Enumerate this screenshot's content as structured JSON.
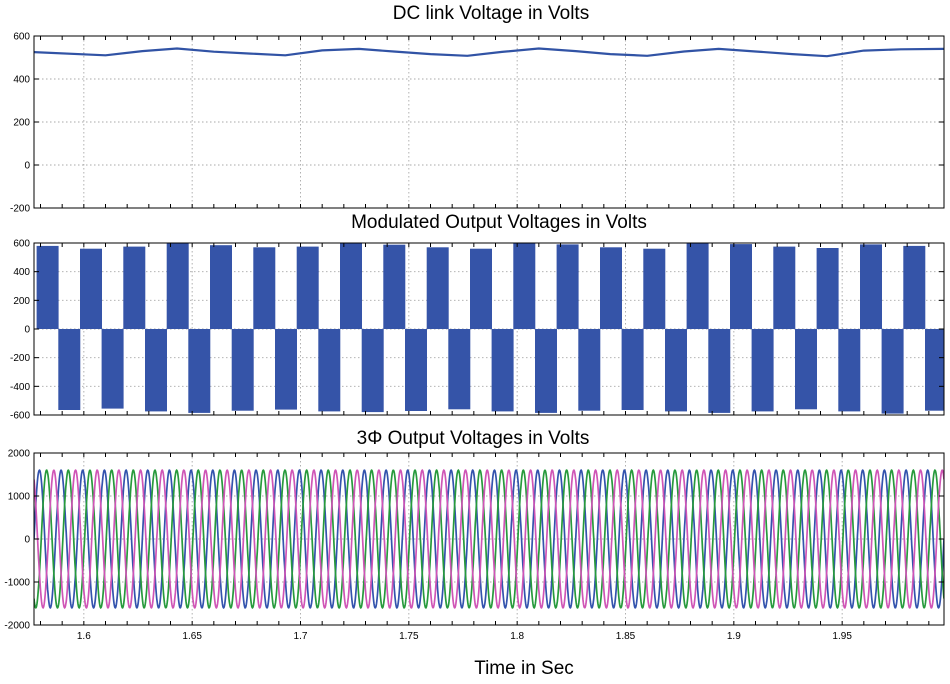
{
  "figure": {
    "xlabel": "Time in Sec"
  },
  "chart_data": [
    {
      "type": "line",
      "title": "DC link Voltage in Volts",
      "xlabel": "",
      "ylabel": "",
      "xlim": [
        1.577,
        1.997
      ],
      "ylim": [
        -200,
        600
      ],
      "yticks": [
        -200,
        0,
        200,
        400,
        600
      ],
      "grid": true,
      "series": [
        {
          "color": "#3153a5",
          "x": [
            1.577,
            1.61,
            1.627,
            1.643,
            1.66,
            1.677,
            1.693,
            1.71,
            1.727,
            1.743,
            1.76,
            1.777,
            1.793,
            1.81,
            1.827,
            1.843,
            1.86,
            1.877,
            1.893,
            1.91,
            1.927,
            1.943,
            1.96,
            1.977,
            1.997
          ],
          "y": [
            525,
            510,
            530,
            542,
            527,
            518,
            510,
            533,
            540,
            528,
            516,
            508,
            526,
            542,
            530,
            516,
            508,
            528,
            540,
            528,
            516,
            506,
            532,
            538,
            540
          ]
        }
      ]
    },
    {
      "type": "area",
      "title": "Modulated  Output Voltages in Volts",
      "xlabel": "",
      "ylabel": "",
      "xlim": [
        1.577,
        1.997
      ],
      "ylim": [
        -600,
        600
      ],
      "yticks": [
        -600,
        -400,
        -200,
        0,
        200,
        400,
        600
      ],
      "grid": true,
      "series": [
        {
          "color": "#3554a8",
          "x": [
            1.5833,
            1.6033,
            1.6233,
            1.6433,
            1.6633,
            1.6833,
            1.7033,
            1.7233,
            1.7433,
            1.7633,
            1.7833,
            1.8033,
            1.8233,
            1.8433,
            1.8633,
            1.8833,
            1.9033,
            1.9233,
            1.9433,
            1.9633,
            1.9833
          ],
          "values": [
            580,
            560,
            575,
            600,
            585,
            570,
            575,
            600,
            588,
            570,
            560,
            598,
            590,
            570,
            560,
            597,
            592,
            575,
            565,
            590,
            580
          ]
        },
        {
          "color": "#3554a8",
          "x": [
            1.5933,
            1.6133,
            1.6333,
            1.6533,
            1.6733,
            1.6933,
            1.7133,
            1.7333,
            1.7533,
            1.7733,
            1.7933,
            1.8133,
            1.8333,
            1.8533,
            1.8733,
            1.8933,
            1.9133,
            1.9333,
            1.9533,
            1.9733,
            1.9933
          ],
          "values": [
            -565,
            -555,
            -575,
            -585,
            -570,
            -562,
            -575,
            -580,
            -572,
            -560,
            -575,
            -585,
            -570,
            -565,
            -575,
            -585,
            -575,
            -560,
            -575,
            -590,
            -570
          ]
        }
      ]
    },
    {
      "type": "line",
      "title": "3Φ  Output Voltages in Volts",
      "xlabel": "Time in Sec",
      "ylabel": "",
      "xlim": [
        1.577,
        1.997
      ],
      "ylim": [
        -2000,
        2000
      ],
      "yticks": [
        -2000,
        -1000,
        0,
        1000,
        2000
      ],
      "xticks": [
        1.6,
        1.65,
        1.7,
        1.75,
        1.8,
        1.85,
        1.9,
        1.95
      ],
      "grid": true,
      "series": [
        {
          "color": "#3353ad",
          "amplitude": 1600,
          "frequency_hz": 100,
          "phase_deg": 0
        },
        {
          "color": "#279a3c",
          "amplitude": 1600,
          "frequency_hz": 100,
          "phase_deg": -120
        },
        {
          "color": "#cf55b6",
          "amplitude": 1600,
          "frequency_hz": 100,
          "phase_deg": 120
        }
      ]
    }
  ]
}
